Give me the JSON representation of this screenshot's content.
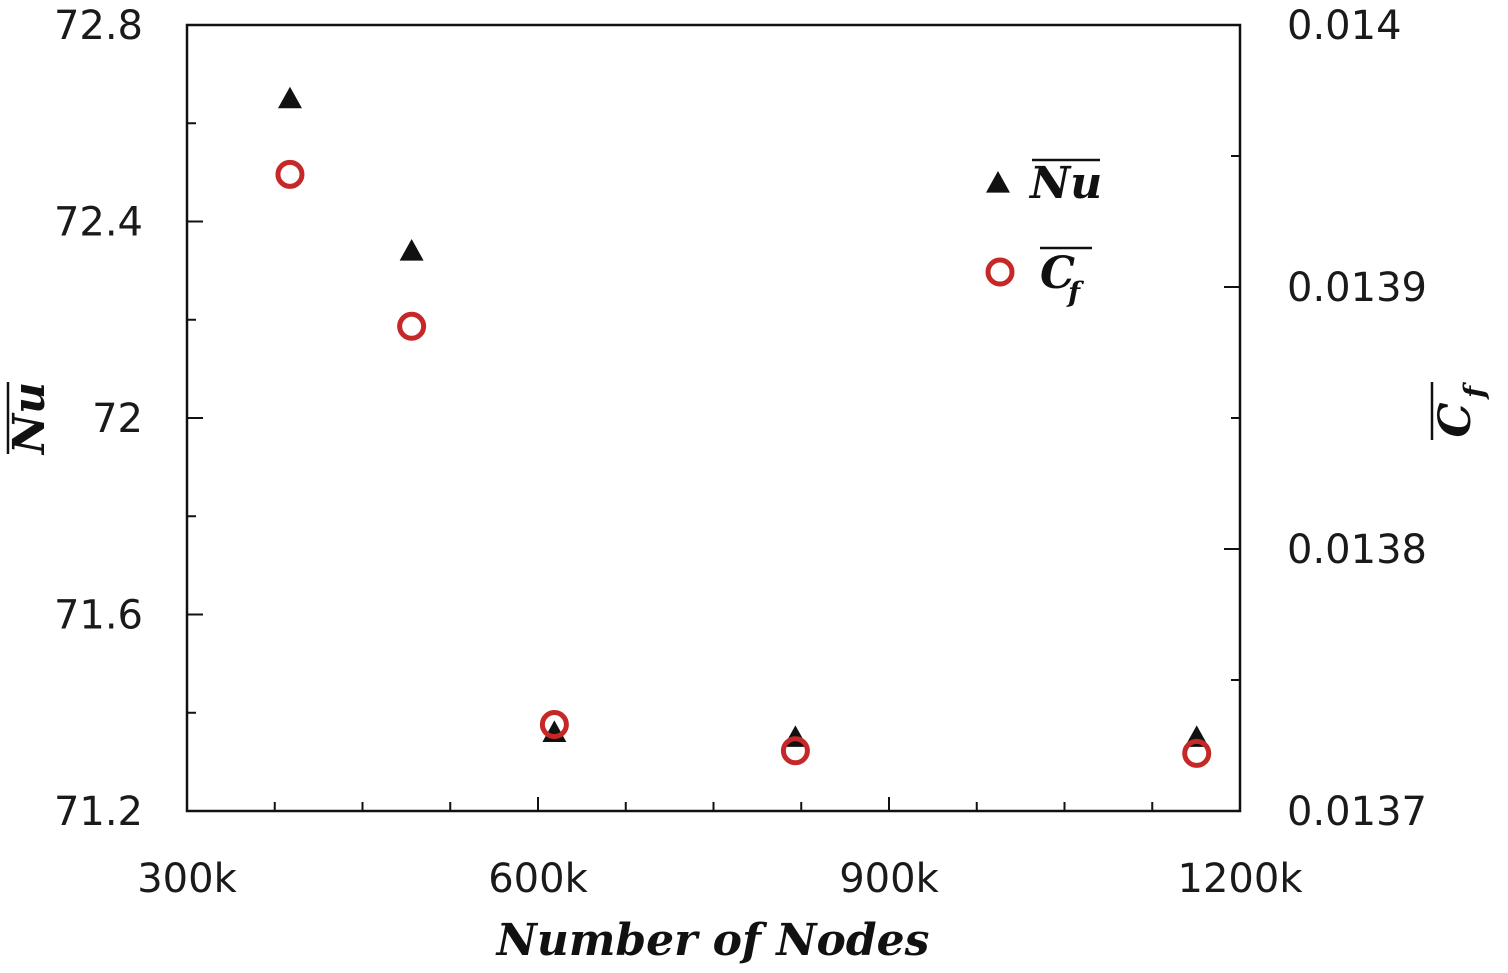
{
  "chart_data": {
    "type": "scatter",
    "x": [
      388000,
      492000,
      614000,
      820000,
      1163000
    ],
    "series": [
      {
        "name": "Nu",
        "axis": "left",
        "marker": "filled-triangle",
        "color": "#111111",
        "values": [
          72.65,
          72.34,
          71.36,
          71.35,
          71.35
        ]
      },
      {
        "name": "Cf",
        "axis": "right",
        "marker": "open-circle",
        "color": "#c62828",
        "values": [
          0.013943,
          0.013885,
          0.013733,
          0.013723,
          0.013722
        ]
      }
    ],
    "xlim": [
      300000,
      1200000
    ],
    "ylim_left": [
      71.2,
      72.8
    ],
    "ylim_right": [
      0.0137,
      0.014
    ],
    "x_ticks": [
      "300k",
      "600k",
      "900k",
      "1200k"
    ],
    "y_left_ticks": [
      "71.2",
      "71.6",
      "72",
      "72.4",
      "72.8"
    ],
    "y_right_ticks": [
      "0.0137",
      "0.0138",
      "0.0139",
      "0.014"
    ],
    "xlabel": "Number of Nodes",
    "ylabel_left": "Nu",
    "ylabel_right": "C",
    "ylabel_right_sub": "f",
    "legend": [
      {
        "label": "Nu",
        "sub": ""
      },
      {
        "label": "C",
        "sub": "f"
      }
    ],
    "legend_position": "top-right",
    "grid": false
  }
}
